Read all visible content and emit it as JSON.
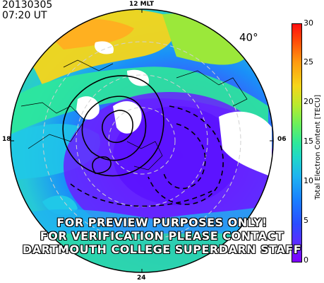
{
  "header": {
    "date": "20130305",
    "time": "07:20 UT"
  },
  "mlt_labels": {
    "top": "12 MLT",
    "left": "18",
    "right": "06",
    "bottom": "24"
  },
  "latitude_label": "40°",
  "colorbar": {
    "title": "Total Electron Content [TECU]",
    "ticks": [
      "30",
      "25",
      "20",
      "15",
      "10",
      "5",
      "0"
    ]
  },
  "watermark": {
    "line1": "FOR PREVIEW PURPOSES ONLY!",
    "line2": "FOR VERIFICATION PLEASE CONTACT",
    "line3": "DARTMOUTH COLLEGE SUPERDARN STAFF"
  },
  "colors": {
    "land_green": "#2ee89a",
    "polar_purple": "#6a20ff",
    "hot_orange": "#ffb020",
    "cyan": "#20c8e8"
  }
}
